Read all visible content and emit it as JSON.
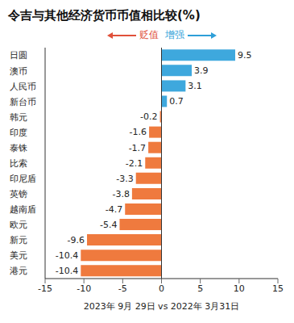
{
  "chart_data": {
    "type": "bar",
    "title": "令吉与其他经济货币币值相比较(%)",
    "orientation": "horizontal",
    "categories": [
      "日圆",
      "澳币",
      "人民币",
      "新台币",
      "韩元",
      "印度",
      "泰铢",
      "比索",
      "印尼盾",
      "英镑",
      "越南盾",
      "欧元",
      "新元",
      "美元",
      "港元"
    ],
    "values": [
      9.5,
      3.9,
      3.1,
      0.7,
      -0.2,
      -1.6,
      -1.7,
      -2.1,
      -3.3,
      -3.8,
      -4.7,
      -5.4,
      -9.6,
      -10.4,
      -10.4
    ],
    "colors": [
      "#3ea8dd",
      "#3ea8dd",
      "#3ea8dd",
      "#3ea8dd",
      "#ef7a3e",
      "#ef7a3e",
      "#ef7a3e",
      "#ef7a3e",
      "#ef7a3e",
      "#ef7a3e",
      "#ef7a3e",
      "#ef7a3e",
      "#ef7a3e",
      "#ef7a3e",
      "#ef7a3e"
    ],
    "xlim": [
      -15,
      15
    ],
    "xticks": [
      -15,
      -10,
      -5,
      0,
      5,
      10,
      15
    ],
    "x_label": "2023年 9月 29日 vs 2022年 3月31日",
    "annotations": [
      {
        "text": "贬值",
        "color": "#e0503a"
      },
      {
        "text": "增强",
        "color": "#2e9fd8"
      }
    ],
    "data_labels": true,
    "grid": false
  }
}
